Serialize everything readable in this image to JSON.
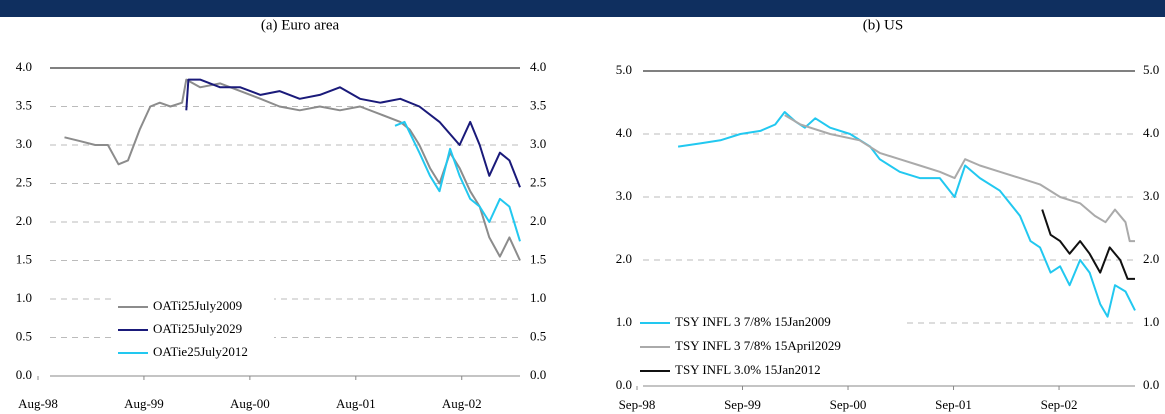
{
  "chart_data": [
    {
      "type": "line",
      "title": "(a) Euro area",
      "xlim": [
        1998.58,
        2003.13
      ],
      "xticks": [
        {
          "value": 1998.58,
          "label": "Aug-98"
        },
        {
          "value": 1999.58,
          "label": "Aug-99"
        },
        {
          "value": 2000.58,
          "label": "Aug-00"
        },
        {
          "value": 2001.58,
          "label": "Aug-01"
        },
        {
          "value": 2002.58,
          "label": "Aug-02"
        }
      ],
      "ylim": [
        0,
        4
      ],
      "yticks": [
        {
          "value": 0,
          "label": "0.0"
        },
        {
          "value": 0.5,
          "label": "0.5"
        },
        {
          "value": 1,
          "label": "1.0"
        },
        {
          "value": 1.5,
          "label": "1.5"
        },
        {
          "value": 2,
          "label": "2.0"
        },
        {
          "value": 2.5,
          "label": "2.5"
        },
        {
          "value": 3,
          "label": "3.0"
        },
        {
          "value": 3.5,
          "label": "3.5"
        },
        {
          "value": 4,
          "label": "4.0"
        }
      ],
      "y2lim": [
        0,
        4
      ],
      "y2ticks": [
        {
          "value": 0,
          "label": "0.0"
        },
        {
          "value": 0.5,
          "label": "0.5"
        },
        {
          "value": 1,
          "label": "1.0"
        },
        {
          "value": 1.5,
          "label": "1.5"
        },
        {
          "value": 2,
          "label": "2.0"
        },
        {
          "value": 2.5,
          "label": "2.5"
        },
        {
          "value": 3,
          "label": "3.0"
        },
        {
          "value": 3.5,
          "label": "3.5"
        },
        {
          "value": 4,
          "label": "4.0"
        }
      ],
      "grid": true,
      "legend": "lower left",
      "series": [
        {
          "name": "OATi25July2009",
          "color": "#8c8c8c",
          "x": [
            1998.83,
            1998.98,
            1999.12,
            1999.24,
            1999.34,
            1999.43,
            1999.54,
            1999.64,
            1999.73,
            1999.83,
            1999.94,
            1999.98,
            2000.11,
            2000.3,
            2000.49,
            2000.68,
            2000.86,
            2001.05,
            2001.24,
            2001.43,
            2001.62,
            2001.81,
            2002.0,
            2002.09,
            2002.18,
            2002.28,
            2002.37,
            2002.47,
            2002.56,
            2002.66,
            2002.75,
            2002.84,
            2002.94,
            2003.03,
            2003.13
          ],
          "values": [
            3.1,
            3.05,
            3.0,
            3.0,
            2.75,
            2.8,
            3.2,
            3.5,
            3.55,
            3.5,
            3.55,
            3.85,
            3.75,
            3.8,
            3.7,
            3.6,
            3.5,
            3.45,
            3.5,
            3.45,
            3.5,
            3.4,
            3.3,
            3.2,
            3.0,
            2.7,
            2.5,
            2.9,
            2.7,
            2.4,
            2.2,
            1.8,
            1.55,
            1.8,
            1.5
          ]
        },
        {
          "name": "OATi25July2029",
          "color": "#1a1a7a",
          "x": [
            1999.98,
            2000.0,
            2000.11,
            2000.3,
            2000.49,
            2000.68,
            2000.86,
            2001.05,
            2001.24,
            2001.43,
            2001.62,
            2001.81,
            2002.0,
            2002.18,
            2002.37,
            2002.56,
            2002.66,
            2002.75,
            2002.84,
            2002.94,
            2003.03,
            2003.13
          ],
          "values": [
            3.45,
            3.85,
            3.85,
            3.75,
            3.75,
            3.65,
            3.7,
            3.6,
            3.65,
            3.75,
            3.6,
            3.55,
            3.6,
            3.5,
            3.3,
            3.0,
            3.3,
            3.0,
            2.6,
            2.9,
            2.8,
            2.45
          ]
        },
        {
          "name": "OATie25July2012",
          "color": "#22c8f0",
          "x": [
            2001.95,
            2002.04,
            2002.18,
            2002.28,
            2002.37,
            2002.47,
            2002.56,
            2002.66,
            2002.75,
            2002.84,
            2002.94,
            2003.03,
            2003.13
          ],
          "values": [
            3.25,
            3.3,
            2.9,
            2.6,
            2.4,
            2.95,
            2.6,
            2.3,
            2.2,
            2.0,
            2.3,
            2.2,
            1.75
          ]
        }
      ]
    },
    {
      "type": "line",
      "title": "(b) US",
      "xlim": [
        1998.67,
        2003.39
      ],
      "xticks": [
        {
          "value": 1998.67,
          "label": "Sep-98"
        },
        {
          "value": 1999.67,
          "label": "Sep-99"
        },
        {
          "value": 2000.67,
          "label": "Sep-00"
        },
        {
          "value": 2001.67,
          "label": "Sep-01"
        },
        {
          "value": 2002.67,
          "label": "Sep-02"
        }
      ],
      "ylim": [
        0,
        5
      ],
      "yticks": [
        {
          "value": 0,
          "label": "0.0"
        },
        {
          "value": 1,
          "label": "1.0"
        },
        {
          "value": 2,
          "label": "2.0"
        },
        {
          "value": 3,
          "label": "3.0"
        },
        {
          "value": 4,
          "label": "4.0"
        },
        {
          "value": 5,
          "label": "5.0"
        }
      ],
      "y2lim": [
        0,
        5
      ],
      "y2ticks": [
        {
          "value": 0,
          "label": "0.0"
        },
        {
          "value": 1,
          "label": "1.0"
        },
        {
          "value": 2,
          "label": "2.0"
        },
        {
          "value": 3,
          "label": "3.0"
        },
        {
          "value": 4,
          "label": "4.0"
        },
        {
          "value": 5,
          "label": "5.0"
        }
      ],
      "grid": true,
      "legend": "lower left",
      "series": [
        {
          "name": "TSY INFL 3 7/8% 15Jan2009",
          "color": "#22c8f0",
          "x": [
            1999.06,
            1999.27,
            1999.46,
            1999.65,
            1999.84,
            1999.98,
            2000.07,
            2000.17,
            2000.26,
            2000.36,
            2000.5,
            2000.69,
            2000.88,
            2000.97,
            2001.16,
            2001.35,
            2001.54,
            2001.68,
            2001.78,
            2001.92,
            2002.11,
            2002.3,
            2002.4,
            2002.49,
            2002.59,
            2002.68,
            2002.77,
            2002.87,
            2002.96,
            2003.06,
            2003.13,
            2003.2,
            2003.3,
            2003.39
          ],
          "values": [
            3.8,
            3.85,
            3.9,
            4.0,
            4.05,
            4.15,
            4.35,
            4.2,
            4.1,
            4.25,
            4.1,
            4.0,
            3.8,
            3.6,
            3.4,
            3.3,
            3.3,
            3.0,
            3.5,
            3.3,
            3.1,
            2.7,
            2.3,
            2.2,
            1.8,
            1.9,
            1.6,
            2.0,
            1.8,
            1.3,
            1.1,
            1.6,
            1.5,
            1.2
          ]
        },
        {
          "name": "TSY INFL 3 7/8% 15April2029",
          "color": "#aaaaaa",
          "x": [
            2000.07,
            2000.22,
            2000.5,
            2000.78,
            2000.97,
            2001.16,
            2001.35,
            2001.54,
            2001.68,
            2001.78,
            2001.92,
            2002.11,
            2002.3,
            2002.49,
            2002.68,
            2002.87,
            2003.01,
            2003.11,
            2003.2,
            2003.3,
            2003.34,
            2003.39
          ],
          "values": [
            4.3,
            4.15,
            4.0,
            3.9,
            3.7,
            3.6,
            3.5,
            3.4,
            3.3,
            3.6,
            3.5,
            3.4,
            3.3,
            3.2,
            3.0,
            2.9,
            2.7,
            2.6,
            2.8,
            2.6,
            2.3,
            2.3
          ]
        },
        {
          "name": "TSY INFL 3.0% 15Jan2012",
          "color": "#111111",
          "x": [
            2002.51,
            2002.59,
            2002.68,
            2002.77,
            2002.87,
            2002.96,
            2003.06,
            2003.15,
            2003.25,
            2003.32,
            2003.39
          ],
          "values": [
            2.8,
            2.4,
            2.3,
            2.1,
            2.3,
            2.1,
            1.8,
            2.2,
            2.0,
            1.7,
            1.7
          ]
        }
      ]
    }
  ]
}
